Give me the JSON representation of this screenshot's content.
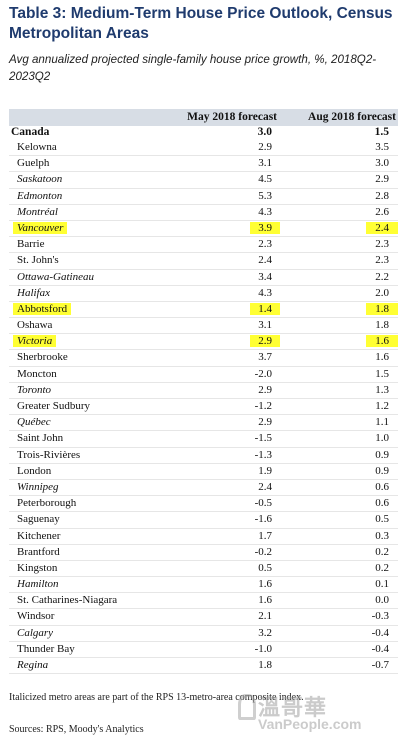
{
  "title": "Table 3: Medium-Term House Price Outlook, Census Metropolitan Areas",
  "subtitle": "Avg annualized projected single-family house price growth, %, 2018Q2-2023Q2",
  "header": {
    "col1": "May 2018  forecast",
    "col2": "Aug 2018 forecast"
  },
  "canada": {
    "name": "Canada",
    "v1": "3.0",
    "v2": "1.5"
  },
  "rows": [
    {
      "name": "Kelowna",
      "v1": "2.9",
      "v2": "3.5",
      "italic": false,
      "hl": false
    },
    {
      "name": "Guelph",
      "v1": "3.1",
      "v2": "3.0",
      "italic": false,
      "hl": false
    },
    {
      "name": "Saskatoon",
      "v1": "4.5",
      "v2": "2.9",
      "italic": true,
      "hl": false
    },
    {
      "name": "Edmonton",
      "v1": "5.3",
      "v2": "2.8",
      "italic": true,
      "hl": false
    },
    {
      "name": "Montréal",
      "v1": "4.3",
      "v2": "2.6",
      "italic": true,
      "hl": false
    },
    {
      "name": "Vancouver",
      "v1": "3.9",
      "v2": "2.4",
      "italic": true,
      "hl": true
    },
    {
      "name": "Barrie",
      "v1": "2.3",
      "v2": "2.3",
      "italic": false,
      "hl": false
    },
    {
      "name": "St. John's",
      "v1": "2.4",
      "v2": "2.3",
      "italic": false,
      "hl": false
    },
    {
      "name": "Ottawa-Gatineau",
      "v1": "3.4",
      "v2": "2.2",
      "italic": true,
      "hl": false
    },
    {
      "name": "Halifax",
      "v1": "4.3",
      "v2": "2.0",
      "italic": true,
      "hl": false
    },
    {
      "name": "Abbotsford",
      "v1": "1.4",
      "v2": "1.8",
      "italic": false,
      "hl": true
    },
    {
      "name": "Oshawa",
      "v1": "3.1",
      "v2": "1.8",
      "italic": false,
      "hl": false
    },
    {
      "name": "Victoria",
      "v1": "2.9",
      "v2": "1.6",
      "italic": true,
      "hl": true
    },
    {
      "name": "Sherbrooke",
      "v1": "3.7",
      "v2": "1.6",
      "italic": false,
      "hl": false
    },
    {
      "name": "Moncton",
      "v1": "-2.0",
      "v2": "1.5",
      "italic": false,
      "hl": false
    },
    {
      "name": "Toronto",
      "v1": "2.9",
      "v2": "1.3",
      "italic": true,
      "hl": false
    },
    {
      "name": "Greater Sudbury",
      "v1": "-1.2",
      "v2": "1.2",
      "italic": false,
      "hl": false
    },
    {
      "name": "Québec",
      "v1": "2.9",
      "v2": "1.1",
      "italic": true,
      "hl": false
    },
    {
      "name": "Saint John",
      "v1": "-1.5",
      "v2": "1.0",
      "italic": false,
      "hl": false
    },
    {
      "name": "Trois-Rivières",
      "v1": "-1.3",
      "v2": "0.9",
      "italic": false,
      "hl": false
    },
    {
      "name": "London",
      "v1": "1.9",
      "v2": "0.9",
      "italic": false,
      "hl": false
    },
    {
      "name": "Winnipeg",
      "v1": "2.4",
      "v2": "0.6",
      "italic": true,
      "hl": false
    },
    {
      "name": "Peterborough",
      "v1": "-0.5",
      "v2": "0.6",
      "italic": false,
      "hl": false
    },
    {
      "name": "Saguenay",
      "v1": "-1.6",
      "v2": "0.5",
      "italic": false,
      "hl": false
    },
    {
      "name": "Kitchener",
      "v1": "1.7",
      "v2": "0.3",
      "italic": false,
      "hl": false
    },
    {
      "name": "Brantford",
      "v1": "-0.2",
      "v2": "0.2",
      "italic": false,
      "hl": false
    },
    {
      "name": "Kingston",
      "v1": "0.5",
      "v2": "0.2",
      "italic": false,
      "hl": false
    },
    {
      "name": "Hamilton",
      "v1": "1.6",
      "v2": "0.1",
      "italic": true,
      "hl": false
    },
    {
      "name": "St. Catharines-Niagara",
      "v1": "1.6",
      "v2": "0.0",
      "italic": false,
      "hl": false
    },
    {
      "name": "Windsor",
      "v1": "2.1",
      "v2": "-0.3",
      "italic": false,
      "hl": false
    },
    {
      "name": "Calgary",
      "v1": "3.2",
      "v2": "-0.4",
      "italic": true,
      "hl": false
    },
    {
      "name": "Thunder Bay",
      "v1": "-1.0",
      "v2": "-0.4",
      "italic": false,
      "hl": false
    },
    {
      "name": "Regina",
      "v1": "1.8",
      "v2": "-0.7",
      "italic": true,
      "hl": false
    }
  ],
  "note": "Italicized metro areas are part of the RPS 13-metro-area composite index.",
  "sources": "Sources: RPS, Moody's Analytics",
  "watermark": {
    "line1": "溫哥華",
    "line2": "VanPeople.com"
  },
  "colors": {
    "title": "#1f3b6e",
    "header_bg": "#d7dde5",
    "highlight": "#ffff33"
  }
}
